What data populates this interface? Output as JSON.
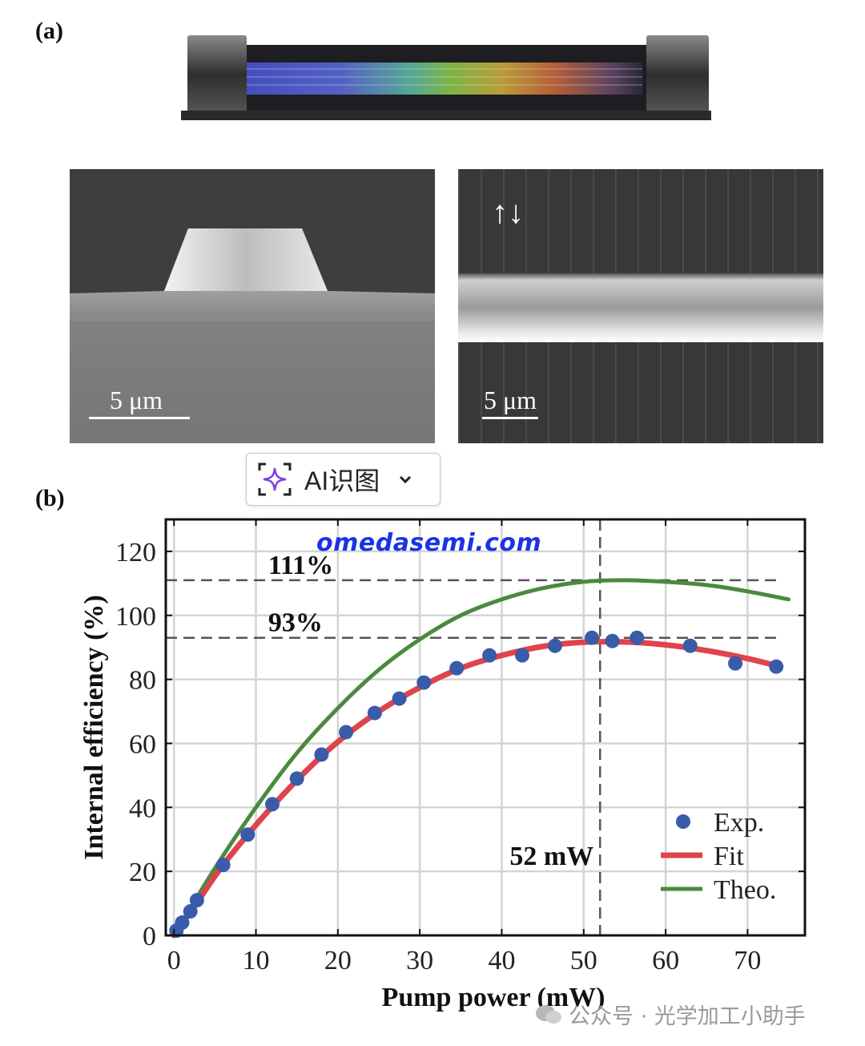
{
  "panels": {
    "a_label": "(a)",
    "b_label": "(b)",
    "sem_left_scale": "5 μm",
    "sem_right_scale": "5 μm",
    "sem_right_arrows": "↑↓"
  },
  "ai_button": {
    "label": "AI识图",
    "icon": "sparkle-icon",
    "dropdown_icon": "chevron-down-icon",
    "accent": "#7b3fe4"
  },
  "watermarks": {
    "site": "omedasemi.com",
    "wechat": "公众号 · 光学加工小助手"
  },
  "chart_data": {
    "type": "scatter",
    "xlabel": "Pump power (mW)",
    "ylabel": "Internal efficiency (%)",
    "xlim": [
      -1,
      77
    ],
    "ylim": [
      0,
      130
    ],
    "x_ticks": [
      0,
      10,
      20,
      30,
      40,
      50,
      60,
      70
    ],
    "y_ticks": [
      0,
      20,
      40,
      60,
      80,
      100,
      120
    ],
    "grid": true,
    "hlines": [
      {
        "y": 111,
        "label": "111%"
      },
      {
        "y": 93,
        "label": "93%"
      }
    ],
    "vline": {
      "x": 52,
      "label": "52 mW"
    },
    "legend_position": "bottom-right",
    "series": [
      {
        "name": "Exp.",
        "kind": "markers",
        "color": "#3a5ba8",
        "points": [
          [
            0.3,
            1.5
          ],
          [
            1.0,
            4.0
          ],
          [
            2.0,
            7.5
          ],
          [
            2.8,
            11
          ],
          [
            6,
            22
          ],
          [
            9,
            31.5
          ],
          [
            12,
            41
          ],
          [
            15,
            49
          ],
          [
            18,
            56.5
          ],
          [
            21,
            63.5
          ],
          [
            24.5,
            69.5
          ],
          [
            27.5,
            74
          ],
          [
            30.5,
            79
          ],
          [
            34.5,
            83.5
          ],
          [
            38.5,
            87.5
          ],
          [
            42.5,
            87.5
          ],
          [
            46.5,
            90.5
          ],
          [
            51,
            93
          ],
          [
            53.5,
            92
          ],
          [
            56.5,
            93
          ],
          [
            63,
            90.5
          ],
          [
            68.5,
            85
          ],
          [
            73.5,
            84
          ]
        ]
      },
      {
        "name": "Fit",
        "kind": "line",
        "color": "#e0434b",
        "points": [
          [
            0,
            0
          ],
          [
            3,
            11
          ],
          [
            6,
            22
          ],
          [
            10,
            34.5
          ],
          [
            15,
            48.5
          ],
          [
            20,
            60.5
          ],
          [
            25,
            70
          ],
          [
            30,
            77.5
          ],
          [
            35,
            83.5
          ],
          [
            40,
            87.5
          ],
          [
            45,
            90.3
          ],
          [
            50,
            91.6
          ],
          [
            55,
            91.7
          ],
          [
            60,
            90.8
          ],
          [
            65,
            89
          ],
          [
            70,
            86.5
          ],
          [
            74,
            84
          ]
        ]
      },
      {
        "name": "Theo.",
        "kind": "line",
        "color": "#4a8a3e",
        "points": [
          [
            0,
            0
          ],
          [
            5,
            21
          ],
          [
            10,
            40
          ],
          [
            15,
            57
          ],
          [
            20,
            71
          ],
          [
            25,
            83
          ],
          [
            30,
            92.5
          ],
          [
            35,
            100
          ],
          [
            40,
            105
          ],
          [
            45,
            108.5
          ],
          [
            50,
            110.5
          ],
          [
            55,
            111
          ],
          [
            60,
            110.5
          ],
          [
            65,
            109.5
          ],
          [
            70,
            107.5
          ],
          [
            75,
            105
          ]
        ]
      }
    ]
  }
}
